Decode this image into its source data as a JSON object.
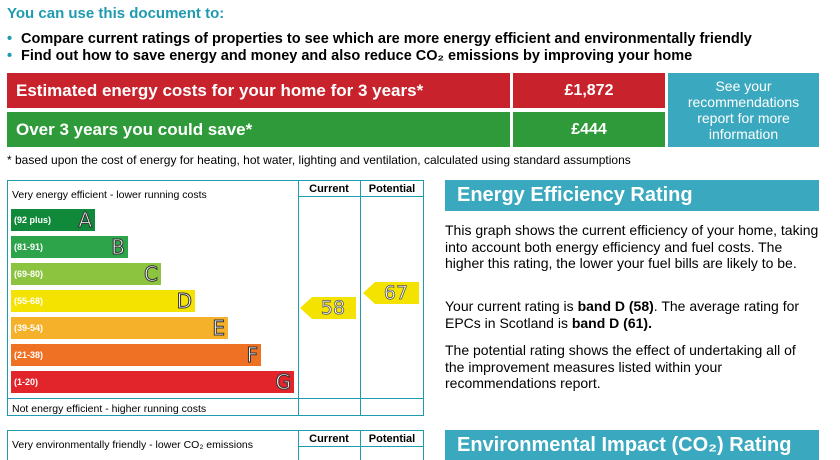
{
  "intro": {
    "heading": "You can use this document to:",
    "bullets": [
      "Compare current ratings of properties to see which are more energy efficient and environmentally friendly",
      "Find out how to save energy and money and also reduce CO₂ emissions by improving your home"
    ]
  },
  "costs": {
    "estimated_label": "Estimated energy costs for your home for 3 years*",
    "estimated_value": "£1,872",
    "save_label": "Over 3 years you could save*",
    "save_value": "£444",
    "recommendations_button": "See your recommendations report for more information",
    "footnote": "* based upon the cost of energy for heating, hot water, lighting and ventilation, calculated using standard assumptions"
  },
  "efficiency_chart": {
    "top_label": "Very energy efficient - lower running costs",
    "bottom_label": "Not energy efficient - higher running costs",
    "col_current": "Current",
    "col_potential": "Potential",
    "bands": [
      {
        "range": "(92 plus)",
        "letter": "A",
        "color": "#108a3a"
      },
      {
        "range": "(81-91)",
        "letter": "B",
        "color": "#2ea44a"
      },
      {
        "range": "(69-80)",
        "letter": "C",
        "color": "#8cc43f"
      },
      {
        "range": "(55-68)",
        "letter": "D",
        "color": "#f4e200"
      },
      {
        "range": "(39-54)",
        "letter": "E",
        "color": "#f6b12b"
      },
      {
        "range": "(21-38)",
        "letter": "F",
        "color": "#ee7124"
      },
      {
        "range": "(1-20)",
        "letter": "G",
        "color": "#e2252b"
      }
    ],
    "current_rating": "58",
    "potential_rating": "67"
  },
  "efficiency_panel": {
    "title": "Energy Efficiency Rating",
    "para1": "This graph shows the current efficiency of your home, taking into account both energy efficiency and fuel costs. The higher this rating, the lower your fuel bills are likely to be.",
    "para2_a": "Your current rating is ",
    "para2_b": "band D (58)",
    "para2_c": ". The average rating for EPCs in Scotland is ",
    "para2_d": "band D (61).",
    "para3": "The potential rating shows the effect of undertaking all of the improvement measures listed within your recommendations report."
  },
  "environment_chart": {
    "top_label": "Very environmentally friendly - lower CO₂ emissions",
    "col_current": "Current",
    "col_potential": "Potential"
  },
  "environment_panel": {
    "title": "Environmental Impact (CO₂) Rating"
  }
}
